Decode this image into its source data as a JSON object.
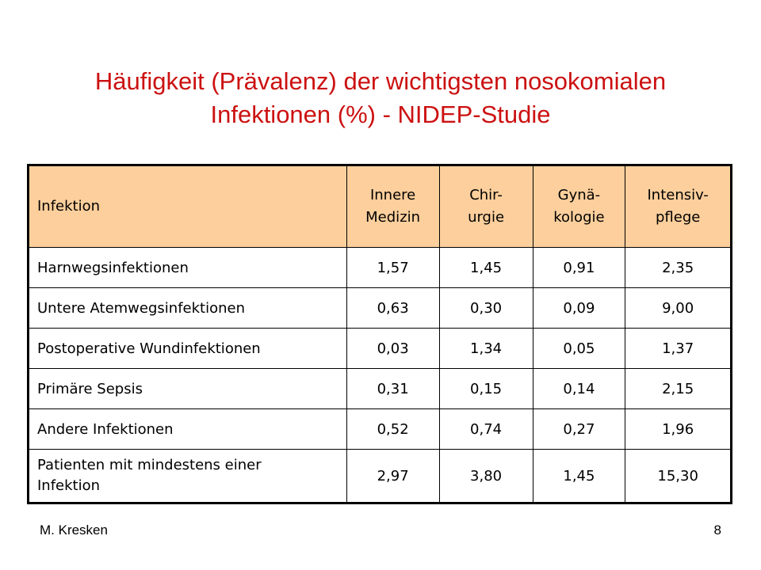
{
  "title": {
    "line1": "Häufigkeit (Prävalenz) der wichtigsten nosokomialen",
    "line2": "Infektionen (%) - NIDEP-Studie"
  },
  "table": {
    "headers": [
      "Infektion",
      "Innere\nMedizin",
      "Chir-\nurgie",
      "Gynä-\nkologie",
      "Intensiv-\npflege"
    ],
    "header_color": "#fccf9c",
    "rows": [
      [
        "Harnwegsinfektionen",
        "1,57",
        "1,45",
        "0,91",
        "2,35"
      ],
      [
        "Untere Atemwegsinfektionen",
        "0,63",
        "0,30",
        "0,09",
        "9,00"
      ],
      [
        "Postoperative Wundinfektionen",
        "0,03",
        "1,34",
        "0,05",
        "1,37"
      ],
      [
        "Primäre Sepsis",
        "0,31",
        "0,15",
        "0,14",
        "2,15"
      ],
      [
        "Andere Infektionen",
        "0,52",
        "0,74",
        "0,27",
        "1,96"
      ],
      [
        "Patienten mit mindestens einer\nInfektion",
        "2,97",
        "3,80",
        "1,45",
        "15,30"
      ]
    ]
  },
  "footer": {
    "author": "M. Kresken",
    "page_number": "8"
  },
  "colors": {
    "title": "#cc1111"
  }
}
